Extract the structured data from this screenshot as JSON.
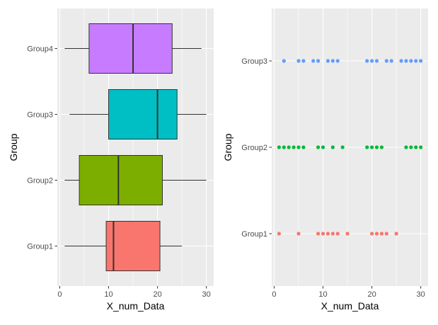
{
  "chart_data": [
    {
      "type": "boxplot",
      "orientation": "horizontal",
      "xlabel": "X_num_Data",
      "ylabel": "Group",
      "xlim": [
        -0.5,
        31.5
      ],
      "x_ticks": [
        0,
        10,
        20,
        30
      ],
      "grid": true,
      "legend": "none",
      "categories": [
        "Group1",
        "Group2",
        "Group3",
        "Group4"
      ],
      "boxes": [
        {
          "group": "Group1",
          "min": 1,
          "q1": 9.5,
          "median": 11,
          "q3": 20.5,
          "max": 25,
          "color": "#F8766D"
        },
        {
          "group": "Group2",
          "min": 1,
          "q1": 4,
          "median": 12,
          "q3": 21,
          "max": 30,
          "color": "#7CAE00"
        },
        {
          "group": "Group3",
          "min": 2,
          "q1": 10,
          "median": 20,
          "q3": 24,
          "max": 30,
          "color": "#00BFC4"
        },
        {
          "group": "Group4",
          "min": 1,
          "q1": 6,
          "median": 15,
          "q3": 23,
          "max": 29,
          "color": "#C77CFF"
        }
      ]
    },
    {
      "type": "scatter",
      "xlabel": "X_num_Data",
      "ylabel": "Group",
      "xlim": [
        -0.5,
        31.5
      ],
      "x_ticks": [
        0,
        10,
        20,
        30
      ],
      "grid": true,
      "legend": "none",
      "categories": [
        "Group1",
        "Group2",
        "Group3"
      ],
      "series": [
        {
          "group": "Group1",
          "color": "#F8766D",
          "x": [
            1,
            5,
            9,
            10,
            11,
            12,
            13,
            15,
            20,
            21,
            22,
            23,
            25
          ]
        },
        {
          "group": "Group2",
          "color": "#00BA38",
          "x": [
            1,
            2,
            3,
            4,
            5,
            6,
            9,
            10,
            12,
            14,
            19,
            20,
            21,
            22,
            27,
            28,
            29,
            30
          ]
        },
        {
          "group": "Group3",
          "color": "#619CFF",
          "x": [
            2,
            5,
            6,
            8,
            9,
            11,
            12,
            13,
            19,
            20,
            21,
            23,
            24,
            26,
            27,
            28,
            29,
            30
          ]
        }
      ]
    }
  ]
}
